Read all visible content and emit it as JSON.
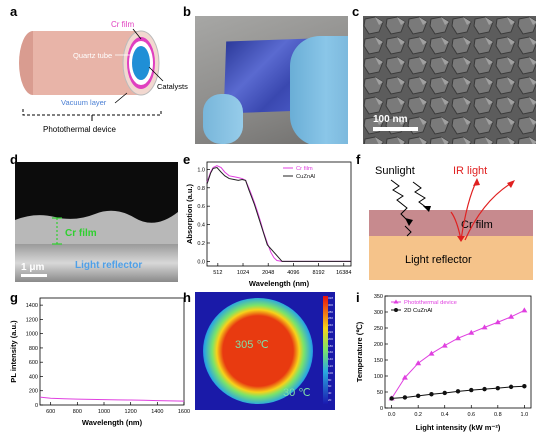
{
  "panel_labels": {
    "a": "a",
    "b": "b",
    "c": "c",
    "d": "d",
    "e": "e",
    "f": "f",
    "g": "g",
    "h": "h",
    "i": "i"
  },
  "panel_a": {
    "cr_film": "Cr film",
    "quartz_tube": "Quartz tube",
    "catalysts": "Catalysts",
    "vacuum_layer": "Vacuum layer",
    "device": "Photothermal device",
    "colors": {
      "tube": "#e8b4a8",
      "cr": "#e040c0",
      "cat": "#1f8fd6",
      "vac": "#7eb0e0"
    }
  },
  "panel_c": {
    "scale": "100 nm"
  },
  "panel_d": {
    "cr_film": "Cr film",
    "reflector": "Light reflector",
    "scale": "1 μm"
  },
  "panel_e": {
    "chart_data": {
      "type": "line",
      "xlabel": "Wavelength (nm)",
      "ylabel": "Absorption (a.u.)",
      "xscale": "log2",
      "xticks": [
        512,
        1024,
        2048,
        4096,
        8192,
        16384
      ],
      "yticks": [
        0.0,
        0.2,
        0.4,
        0.6,
        0.8,
        1.0
      ],
      "xlim": [
        380,
        20000
      ],
      "ylim": [
        -0.05,
        1.08
      ],
      "series": [
        {
          "name": "Cr film",
          "color": "#e040e0",
          "x": [
            380,
            420,
            450,
            500,
            560,
            620,
            700,
            800,
            900,
            1000,
            1100,
            1200,
            1300,
            1400,
            1500,
            1600,
            1700,
            1800,
            2000,
            2200,
            2400,
            2600,
            3000,
            4000,
            6000,
            10000,
            16384,
            20000
          ],
          "y": [
            0.86,
            0.97,
            1.02,
            1.04,
            1.02,
            0.97,
            0.93,
            0.92,
            0.91,
            0.9,
            0.88,
            0.8,
            0.72,
            0.64,
            0.56,
            0.48,
            0.4,
            0.32,
            0.2,
            0.1,
            0.04,
            0.01,
            0.0,
            0.0,
            0.0,
            0.0,
            0.0,
            0.0
          ]
        },
        {
          "name": "CuZnAl",
          "color": "#222222",
          "x": [
            380,
            420,
            450,
            500,
            560,
            620,
            700,
            800,
            900,
            1000,
            1100,
            1200,
            1400,
            2000,
            3000,
            6000,
            20000
          ],
          "y": [
            0.84,
            0.96,
            1.01,
            1.02,
            0.97,
            0.93,
            0.9,
            0.89,
            0.88,
            0.89,
            0.88,
            0.78,
            0.62,
            0.18,
            0.0,
            0.0,
            0.0
          ]
        }
      ]
    }
  },
  "panel_f": {
    "sunlight": "Sunlight",
    "ir": "IR light",
    "cr_film": "Cr film",
    "reflector": "Light reflector",
    "colors": {
      "cr": "#c78a8e",
      "reflector": "#f5c38a",
      "ir": "#e02020"
    }
  },
  "panel_g": {
    "chart_data": {
      "type": "line",
      "xlabel": "Wavelength (nm)",
      "ylabel": "PL intensity (a.u.)",
      "xticks": [
        600,
        800,
        1000,
        1200,
        1400,
        1600
      ],
      "yticks": [
        0,
        200,
        400,
        600,
        800,
        1000,
        1200,
        1400
      ],
      "xlim": [
        520,
        1600
      ],
      "ylim": [
        0,
        1500
      ],
      "series": [
        {
          "name": "PL",
          "color": "#e040e0",
          "x": [
            520,
            600,
            700,
            800,
            900,
            1000,
            1100,
            1200,
            1300,
            1400,
            1500,
            1600
          ],
          "y": [
            110,
            95,
            88,
            82,
            78,
            75,
            72,
            70,
            66,
            62,
            58,
            55
          ]
        }
      ]
    }
  },
  "panel_h": {
    "hot": "305 ℃",
    "cold": "30 ℃",
    "scale_ticks": [
      "328",
      "300",
      "280",
      "260",
      "240",
      "220",
      "200",
      "180",
      "160",
      "140",
      "120",
      "100",
      "80",
      "60",
      "40",
      "20"
    ]
  },
  "panel_i": {
    "chart_data": {
      "type": "line",
      "xlabel": "Light intensity (kW m⁻²)",
      "ylabel": "Temperature (℃)",
      "xticks": [
        0.0,
        0.2,
        0.4,
        0.6,
        0.8,
        1.0
      ],
      "yticks": [
        0,
        50,
        100,
        150,
        200,
        250,
        300,
        350
      ],
      "xlim": [
        -0.05,
        1.05
      ],
      "ylim": [
        0,
        350
      ],
      "legend": "top-left",
      "series": [
        {
          "name": "Photothermal device",
          "color": "#e040e0",
          "marker": "triangle",
          "x": [
            0.0,
            0.1,
            0.2,
            0.3,
            0.4,
            0.5,
            0.6,
            0.7,
            0.8,
            0.9,
            1.0
          ],
          "y": [
            30,
            95,
            140,
            170,
            195,
            218,
            235,
            252,
            268,
            285,
            305
          ]
        },
        {
          "name": "2D CuZnAl",
          "color": "#111111",
          "marker": "circle",
          "x": [
            0.0,
            0.1,
            0.2,
            0.3,
            0.4,
            0.5,
            0.6,
            0.7,
            0.8,
            0.9,
            1.0
          ],
          "y": [
            30,
            33,
            38,
            43,
            47,
            52,
            56,
            59,
            62,
            66,
            68
          ]
        }
      ]
    }
  }
}
